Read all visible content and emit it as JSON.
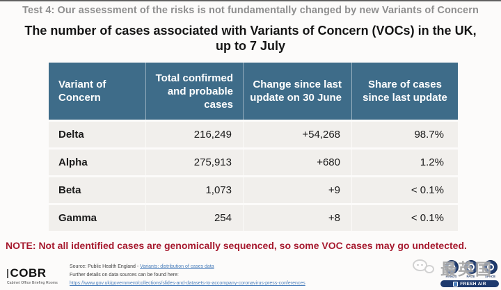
{
  "slide": {
    "eyebrow": "Test 4: Our assessment of the risks is not fundamentally changed by new Variants of Concern",
    "title_line1": "The number of cases associated with Variants of Concern (VOCs) in the UK,",
    "title_line2": "up to 7 July",
    "note": "NOTE: Not all identified cases are genomically sequenced, so some VOC cases may go undetected."
  },
  "table": {
    "columns": [
      "Variant of Concern",
      "Total confirmed and probable cases",
      "Change since last update on 30 June",
      "Share of cases since last update"
    ],
    "rows": [
      {
        "variant": "Delta",
        "total": "216,249",
        "change": "+54,268",
        "share": "98.7%"
      },
      {
        "variant": "Alpha",
        "total": "275,913",
        "change": "+680",
        "share": "1.2%"
      },
      {
        "variant": "Beta",
        "total": "1,073",
        "change": "+9",
        "share": "< 0.1%"
      },
      {
        "variant": "Gamma",
        "total": "254",
        "change": "+8",
        "share": "< 0.1%"
      }
    ]
  },
  "footer": {
    "logo_text": "COBR",
    "logo_subtext": "Cabinet Office Briefing Rooms",
    "source_prefix": "Source: Public Health England - ",
    "source_link": "Variants: distribution of cases data",
    "details_line": "Further details on data sources can be found here:",
    "details_link": "https://www.gov.uk/government/collections/slides-and-datasets-to-accompany-coronavirus-press-conferences"
  },
  "campaign": {
    "badges": [
      "HANDS",
      "FACE",
      "SPACE"
    ],
    "banner": "FRESH AIR"
  },
  "watermark": {
    "text": "最英国"
  },
  "colors": {
    "header_bg": "#3e6c89",
    "row_bg": "#f1efec",
    "note_red": "#a6192e",
    "link_blue": "#4a7ebb",
    "badge_navy": "#1e3a6e",
    "eyebrow_gray": "#8f8f8f"
  }
}
